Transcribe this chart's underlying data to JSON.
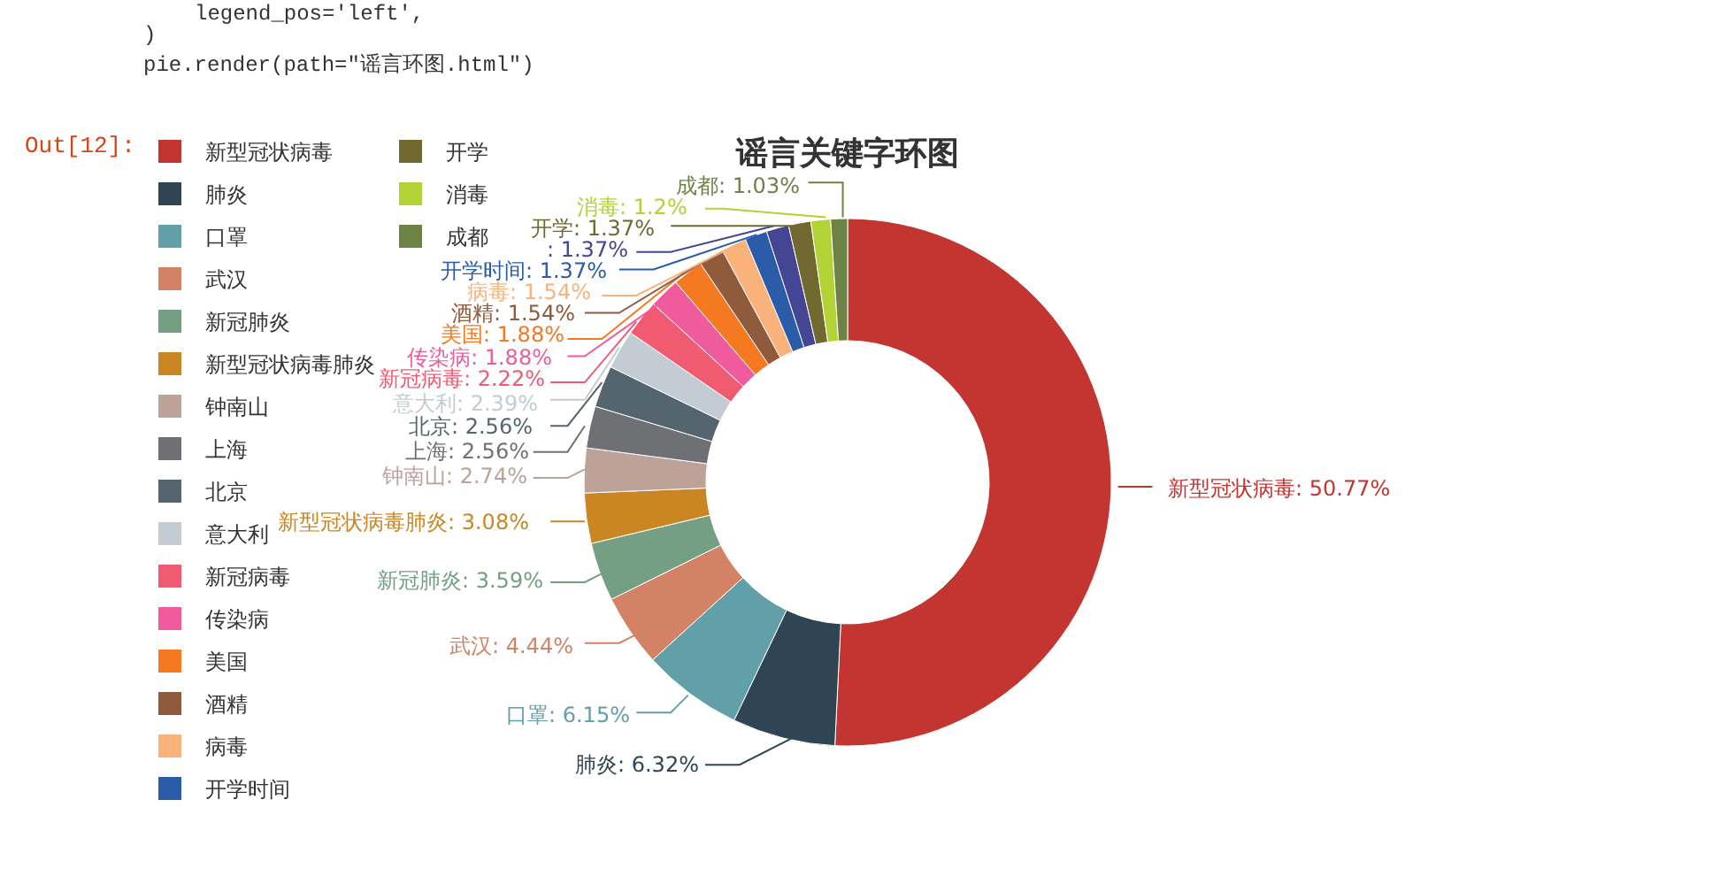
{
  "chart_data": {
    "type": "donut",
    "title": "谣言关键字环图",
    "categories": [
      "新型冠状病毒",
      "肺炎",
      "口罩",
      "武汉",
      "新冠肺炎",
      "新型冠状病毒肺炎",
      "钟南山",
      "上海",
      "北京",
      "意大利",
      "新冠病毒",
      "传染病",
      "美国",
      "酒精",
      "病毒",
      "开学时间",
      null,
      "开学",
      "消毒",
      "成都"
    ],
    "values": [
      50.77,
      6.32,
      6.15,
      4.44,
      3.59,
      3.08,
      2.74,
      2.56,
      2.56,
      2.39,
      2.22,
      1.88,
      1.88,
      1.54,
      1.54,
      1.37,
      1.37,
      1.37,
      1.2,
      1.03
    ],
    "colors": [
      "#c23531",
      "#2f4554",
      "#61a0a8",
      "#d48265",
      "#749f83",
      "#ca8622",
      "#bda29a",
      "#6e7074",
      "#546570",
      "#c4ccd3",
      "#f05b72",
      "#ef5b9c",
      "#f47920",
      "#905a3d",
      "#fab27b",
      "#2a5caa",
      "#444693",
      "#726930",
      "#b2d235",
      "#6d8346"
    ],
    "value_labels": [
      "新型冠状病毒: 50.77%",
      "肺炎: 6.32%",
      "口罩: 6.15%",
      "武汉: 4.44%",
      "新冠肺炎: 3.59%",
      "新型冠状病毒肺炎: 3.08%",
      "钟南山: 2.74%",
      "上海: 2.56%",
      "北京: 2.56%",
      "意大利: 2.39%",
      "新冠病毒: 2.22%",
      "传染病: 1.88%",
      "美国: 1.88%",
      "酒精: 1.54%",
      "病毒: 1.54%",
      "开学时间: 1.37%",
      ": 1.37%",
      "开学: 1.37%",
      "消毒: 1.2%",
      "成都: 1.03%"
    ],
    "legend": "left",
    "annotations": [
      "legend_pos='left',",
      ")",
      "pie.render(path=\"谣言环图.html\")",
      "Out[12]:"
    ]
  }
}
